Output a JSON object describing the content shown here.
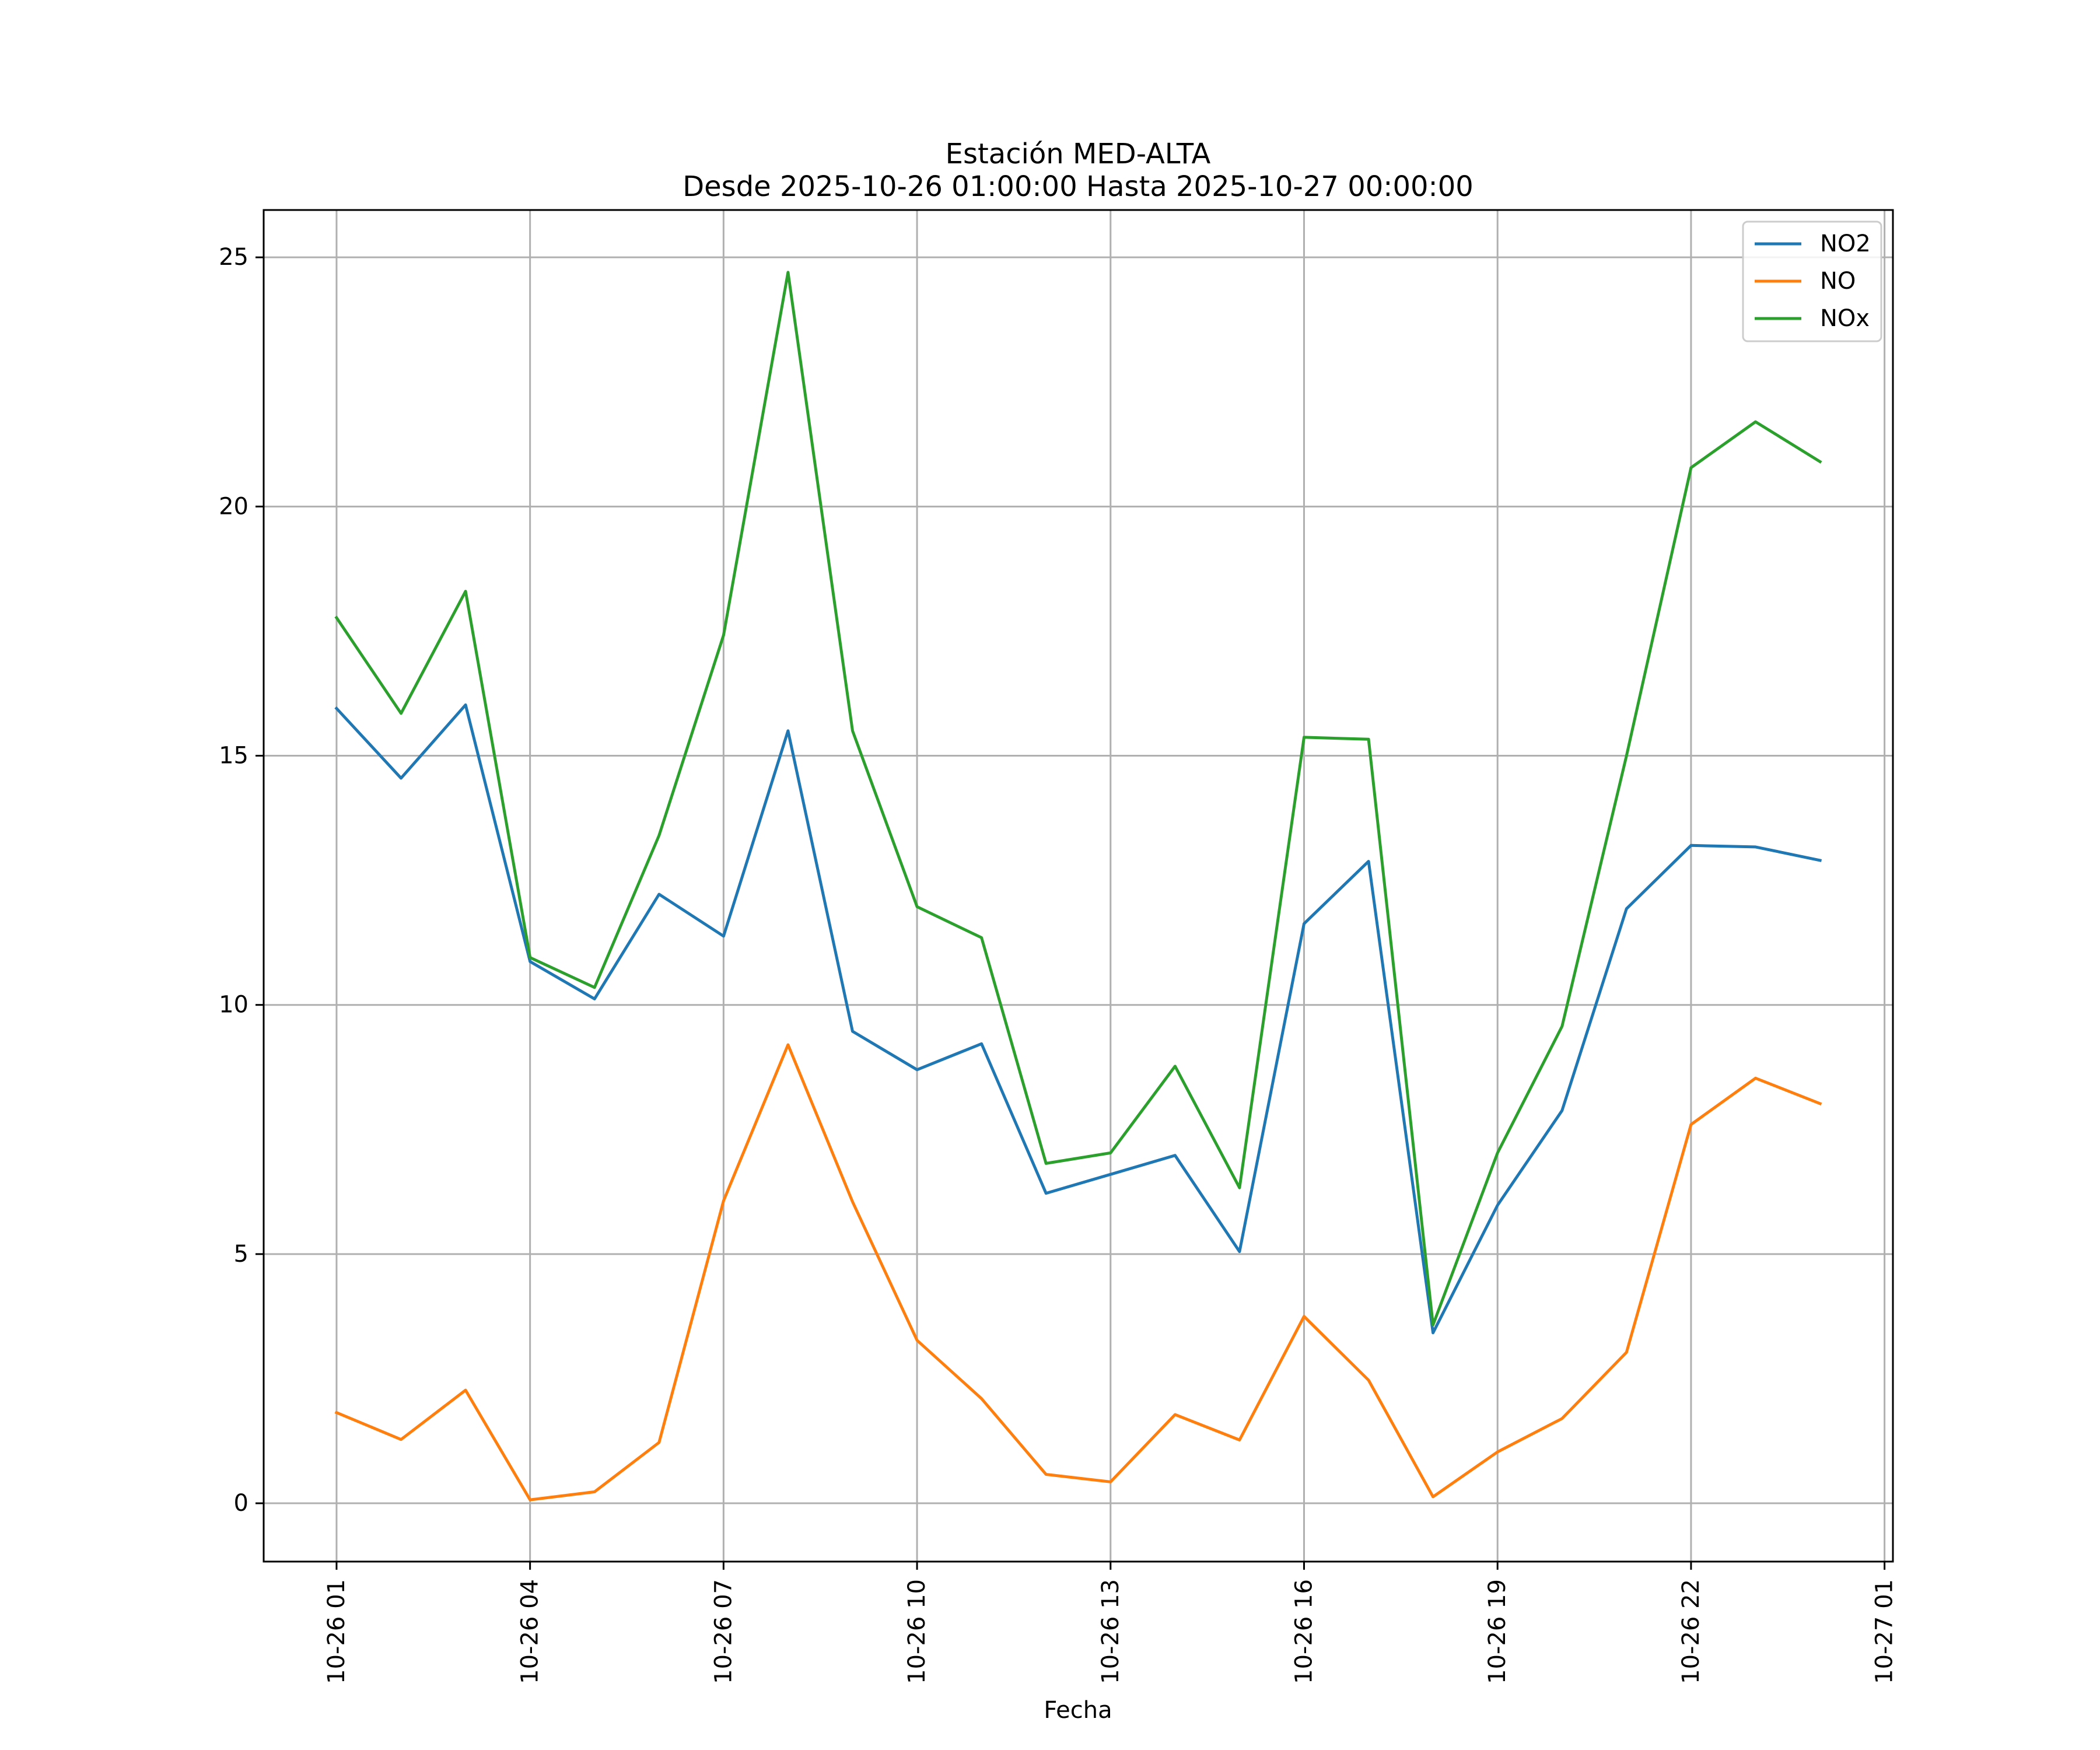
{
  "chart_data": {
    "type": "line",
    "title": "Estación MED-ALTA",
    "subtitle": "Desde 2025-10-26 01:00:00 Hasta 2025-10-27 00:00:00",
    "xlabel": "Fecha",
    "ylabel": "",
    "x_unit": "hours since 2025-10-26 00:00",
    "x": [
      1,
      2,
      3,
      4,
      5,
      6,
      7,
      8,
      9,
      10,
      11,
      12,
      13,
      14,
      15,
      16,
      17,
      18,
      19,
      20,
      21,
      22,
      23,
      24
    ],
    "xlim": [
      -0.13,
      25.13
    ],
    "ylim": [
      -1.17,
      25.95
    ],
    "x_ticks": [
      1,
      4,
      7,
      10,
      13,
      16,
      19,
      22,
      25
    ],
    "x_tick_labels": [
      "10-26 01",
      "10-26 04",
      "10-26 07",
      "10-26 10",
      "10-26 13",
      "10-26 16",
      "10-26 19",
      "10-26 22",
      "10-27 01"
    ],
    "y_ticks": [
      0,
      5,
      10,
      15,
      20,
      25
    ],
    "y_tick_labels": [
      "0",
      "5",
      "10",
      "15",
      "20",
      "25"
    ],
    "grid": true,
    "legend_position": "top-right",
    "series": [
      {
        "name": "NO2",
        "color": "#1f77b4",
        "values": [
          15.95,
          14.55,
          16.02,
          10.87,
          10.12,
          12.22,
          11.38,
          15.5,
          9.47,
          8.7,
          9.22,
          6.22,
          6.6,
          6.98,
          5.05,
          11.63,
          12.88,
          3.42,
          5.98,
          7.88,
          11.93,
          13.2,
          13.17,
          12.9
        ]
      },
      {
        "name": "NO",
        "color": "#ff7f0e",
        "values": [
          1.82,
          1.28,
          2.27,
          0.07,
          0.23,
          1.22,
          6.07,
          9.2,
          6.05,
          3.27,
          2.1,
          0.58,
          0.43,
          1.78,
          1.27,
          3.75,
          2.47,
          0.13,
          1.03,
          1.7,
          3.03,
          7.6,
          8.53,
          8.02
        ]
      },
      {
        "name": "NOx",
        "color": "#2ca02c",
        "values": [
          17.77,
          15.85,
          18.3,
          10.95,
          10.35,
          13.4,
          17.42,
          24.7,
          15.5,
          11.97,
          11.35,
          6.82,
          7.03,
          8.77,
          6.33,
          15.37,
          15.33,
          3.58,
          7.03,
          9.57,
          15.0,
          20.78,
          21.7,
          20.9
        ]
      }
    ]
  }
}
